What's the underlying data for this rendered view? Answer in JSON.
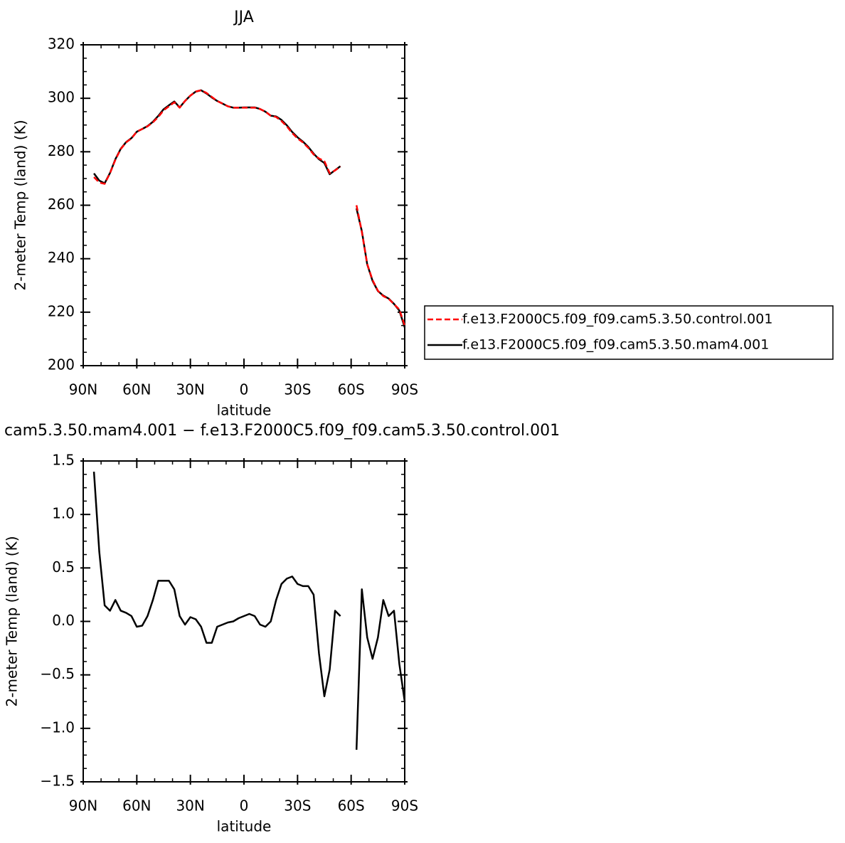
{
  "chart_data": [
    {
      "type": "line",
      "title": "JJA",
      "xlabel": "latitude",
      "ylabel": "2-meter Temp (land) (K)",
      "x": [
        84,
        81,
        78,
        75,
        72,
        69,
        66,
        63,
        60,
        57,
        54,
        51,
        48,
        45,
        42,
        39,
        36,
        33,
        30,
        27,
        24,
        21,
        18,
        15,
        12,
        9,
        6,
        3,
        0,
        -3,
        -6,
        -9,
        -12,
        -15,
        -18,
        -21,
        -24,
        -27,
        -30,
        -33,
        -36,
        -39,
        -42,
        -45,
        -48,
        -51,
        -54,
        -57,
        -60,
        -63,
        -66,
        -69,
        -72,
        -75,
        -78,
        -81,
        -84,
        -87,
        -90
      ],
      "series": [
        {
          "name": "f.e13.F2000C5.f09_f09.cam5.3.50.control.001",
          "color": "#ff0000",
          "dashed": true,
          "values": [
            270.5,
            268.5,
            268,
            272,
            277,
            281,
            283.5,
            285,
            287.5,
            288.5,
            289.5,
            291,
            293,
            295.5,
            297,
            298.5,
            296.5,
            299,
            301,
            302.5,
            303,
            302,
            300.5,
            299,
            298,
            297,
            296.5,
            296.5,
            296.5,
            296.5,
            296.5,
            296,
            295,
            293.5,
            293,
            291.5,
            289.5,
            287,
            285,
            283.5,
            281.5,
            279,
            277.5,
            276.5,
            272,
            273,
            274.5,
            null,
            null,
            260,
            250,
            238,
            232,
            228,
            226,
            225,
            223,
            221,
            215
          ]
        },
        {
          "name": "f.e13.F2000C5.f09_f09.cam5.3.50.mam4.001",
          "color": "#000000",
          "dashed": false,
          "values": [
            271.9,
            269.2,
            268.2,
            272.1,
            277.2,
            281.1,
            283.6,
            285.1,
            287.5,
            288.5,
            289.6,
            291.2,
            293.4,
            295.9,
            297.4,
            298.8,
            296.6,
            299.0,
            301.0,
            302.5,
            303.0,
            301.8,
            300.3,
            299.0,
            298.0,
            297.0,
            296.5,
            296.5,
            296.6,
            296.6,
            296.6,
            296.0,
            295.0,
            293.5,
            293.2,
            291.9,
            289.9,
            287.4,
            285.4,
            283.8,
            281.8,
            279.3,
            277.2,
            275.8,
            271.6,
            273.1,
            274.6,
            null,
            null,
            258.8,
            250.3,
            237.9,
            231.7,
            227.9,
            226.2,
            225.1,
            223.1,
            220.6,
            214.3
          ]
        }
      ],
      "xlim": [
        90,
        -90
      ],
      "xticks": [
        {
          "value": 90,
          "label": "90N"
        },
        {
          "value": 60,
          "label": "60N"
        },
        {
          "value": 30,
          "label": "30N"
        },
        0,
        {
          "value": -30,
          "label": "30S"
        },
        {
          "value": -60,
          "label": "60S"
        },
        {
          "value": -90,
          "label": "90S"
        }
      ],
      "ylim": [
        200,
        320
      ],
      "yticks": [
        200,
        220,
        240,
        260,
        280,
        300,
        320
      ],
      "legend": "right"
    },
    {
      "type": "line",
      "title": "cam5.3.50.mam4.001 − f.e13.F2000C5.f09_f09.cam5.3.50.control.001",
      "xlabel": "latitude",
      "ylabel": "2-meter Temp (land) (K)",
      "x": [
        84,
        81,
        78,
        75,
        72,
        69,
        66,
        63,
        60,
        57,
        54,
        51,
        48,
        45,
        42,
        39,
        36,
        33,
        30,
        27,
        24,
        21,
        18,
        15,
        12,
        9,
        6,
        3,
        0,
        -3,
        -6,
        -9,
        -12,
        -15,
        -18,
        -21,
        -24,
        -27,
        -30,
        -33,
        -36,
        -39,
        -42,
        -45,
        -48,
        -51,
        -54,
        -57,
        -60,
        -63,
        -66,
        -69,
        -72,
        -75,
        -78,
        -81,
        -84,
        -87,
        -90
      ],
      "color": "#000000",
      "values": [
        1.4,
        0.65,
        0.15,
        0.1,
        0.2,
        0.1,
        0.08,
        0.05,
        -0.05,
        -0.04,
        0.05,
        0.2,
        0.38,
        0.38,
        0.38,
        0.3,
        0.05,
        -0.03,
        0.04,
        0.02,
        -0.05,
        -0.2,
        -0.2,
        -0.05,
        -0.03,
        -0.01,
        0.0,
        0.03,
        0.05,
        0.07,
        0.05,
        -0.03,
        -0.05,
        0.0,
        0.2,
        0.35,
        0.4,
        0.42,
        0.35,
        0.33,
        0.33,
        0.25,
        -0.3,
        -0.7,
        -0.45,
        0.1,
        0.05,
        null,
        null,
        -1.2,
        0.3,
        -0.15,
        -0.35,
        -0.15,
        0.2,
        0.05,
        0.1,
        -0.4,
        -0.75
      ],
      "xlim": [
        90,
        -90
      ],
      "xticks": [
        {
          "value": 90,
          "label": "90N"
        },
        {
          "value": 60,
          "label": "60N"
        },
        {
          "value": 30,
          "label": "30N"
        },
        0,
        {
          "value": -30,
          "label": "30S"
        },
        {
          "value": -60,
          "label": "60S"
        },
        {
          "value": -90,
          "label": "90S"
        }
      ],
      "ylim": [
        -1.5,
        1.5
      ],
      "yticks": [
        {
          "value": -1.5,
          "label": "−1.5"
        },
        {
          "value": -1.0,
          "label": "−1.0"
        },
        {
          "value": -0.5,
          "label": "−0.5"
        },
        {
          "value": 0,
          "label": "0.0"
        },
        {
          "value": 0.5,
          "label": "0.5"
        },
        {
          "value": 1.0,
          "label": "1.0"
        },
        1.5
      ]
    }
  ]
}
